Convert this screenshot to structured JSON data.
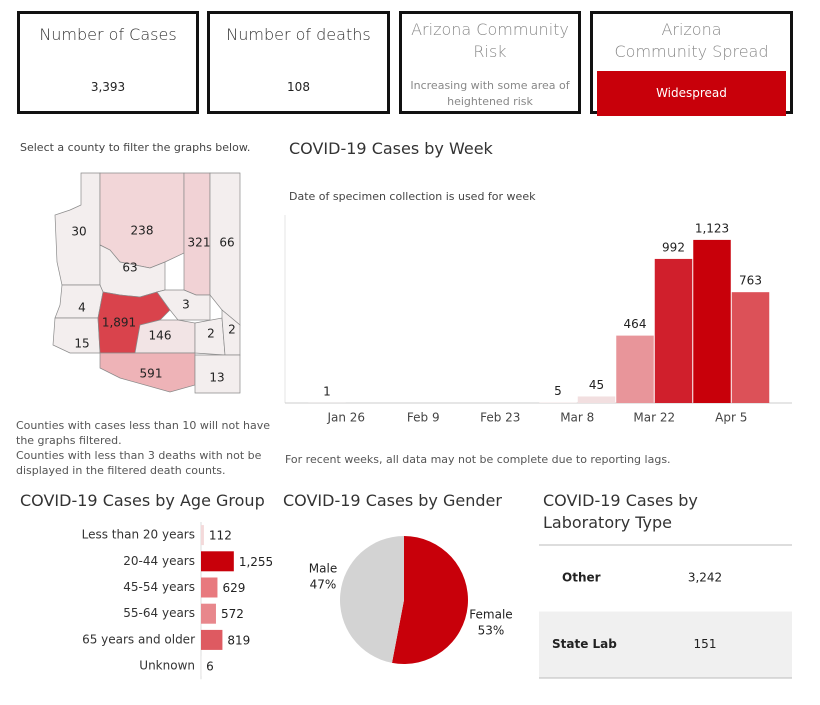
{
  "cards": [
    {
      "title": "Number of Cases",
      "value": "3,393"
    },
    {
      "title": "Number of deaths",
      "value": "108"
    },
    {
      "title": "Arizona Community Risk",
      "value": "Increasing with some area of heightened risk"
    },
    {
      "title": "Arizona Community Spread",
      "value": "Widespread"
    }
  ],
  "map": {
    "instruction": "Select a county to filter the graphs below.",
    "labels": [
      "30",
      "238",
      "321",
      "66",
      "63",
      "4",
      "15",
      "1,891",
      "3",
      "146",
      "2",
      "2",
      "591",
      "13"
    ],
    "colors": [
      "#f3eeee",
      "#f2d6d8",
      "#f1d2d5",
      "#f3eeee",
      "#f3eeee",
      "#f3eeee",
      "#f3eeee",
      "#d9434c",
      "#f3eeee",
      "#f2e4e5",
      "#f3eeee",
      "#f3eeee",
      "#eeb3b7",
      "#f3eeee"
    ],
    "notes": [
      "Counties with cases less than 10 will not have the graphs filtered.",
      "Counties with less than 3 deaths with not be displayed in the filtered death counts."
    ]
  },
  "chart_data": [
    {
      "type": "bar",
      "title": "COVID-19 Cases by Week",
      "subtitle": "Date of specimen collection is used for week",
      "footnote": "For recent weeks, all data may not be complete due to reporting lags.",
      "categories": [
        "Jan 26",
        null,
        "Feb 9",
        null,
        "Feb 23",
        null,
        "Mar 8",
        null,
        "Mar 22",
        null,
        "Apr 5",
        null
      ],
      "values": [
        1,
        null,
        null,
        null,
        null,
        null,
        5,
        45,
        464,
        992,
        1123,
        763
      ],
      "value_labels": [
        "1",
        null,
        null,
        null,
        null,
        null,
        "5",
        "45",
        "464",
        "992",
        "1,123",
        "763"
      ],
      "colors": [
        "#f7efef",
        null,
        null,
        null,
        null,
        null,
        "#f6ecec",
        "#f2dfe0",
        "#e8959a",
        "#d01f2c",
        "#c8000a",
        "#dc5158"
      ],
      "ylim": [
        0,
        1260
      ]
    },
    {
      "type": "bar",
      "orientation": "horizontal",
      "title": "COVID-19 Cases by Age Group",
      "categories": [
        "Less than 20 years",
        "20-44 years",
        "45-54 years",
        "55-64 years",
        "65 years and older",
        "Unknown"
      ],
      "values": [
        112,
        1255,
        629,
        572,
        819,
        6
      ],
      "value_labels": [
        "112",
        "1,255",
        "629",
        "572",
        "819",
        "6"
      ],
      "colors": [
        "#f4d9da",
        "#c8000a",
        "#e8797e",
        "#e8878c",
        "#de5a61",
        "#f7f0f0"
      ],
      "xlim": [
        0,
        2600
      ]
    },
    {
      "type": "pie",
      "title": "COVID-19 Cases by Gender",
      "categories": [
        "Female",
        "Male"
      ],
      "values": [
        53,
        47
      ],
      "value_labels": [
        "53%",
        "47%"
      ],
      "colors": [
        "#c8000a",
        "#d3d3d3"
      ]
    }
  ],
  "lab_table": {
    "title": "COVID-19 Cases by Laboratory Type",
    "rows": [
      [
        "Other",
        "3,242"
      ],
      [
        "State Lab",
        "151"
      ]
    ]
  }
}
